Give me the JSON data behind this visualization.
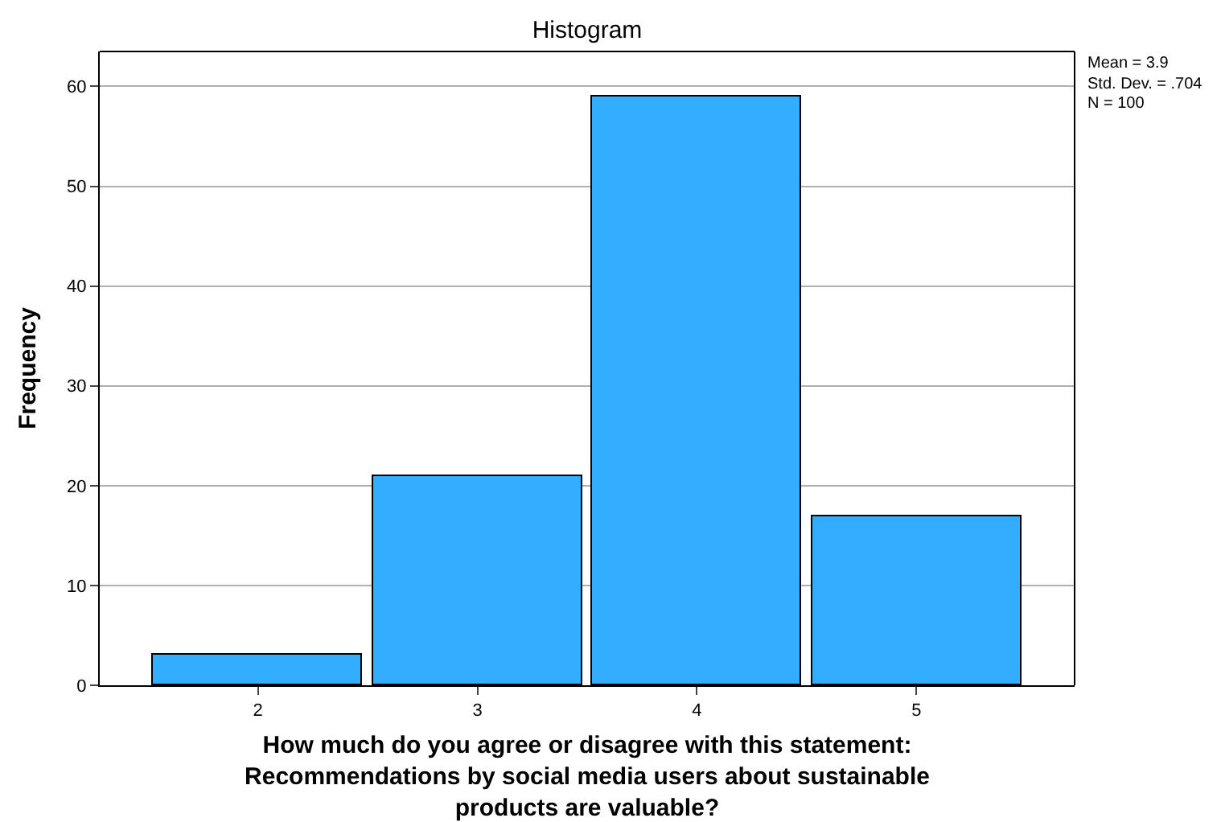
{
  "chart_data": {
    "type": "histogram",
    "title": "Histogram",
    "xlabel": "How much do you agree or disagree with this statement: Recommendations by social media users about sustainable products are valuable?",
    "ylabel": "Frequency",
    "bins": [
      1.5,
      2.5,
      3.5,
      4.5,
      5.5
    ],
    "values": [
      3,
      21,
      59,
      17
    ],
    "color": "#33adff",
    "xlim": [
      1.28,
      5.72
    ],
    "xticks": [
      2,
      3,
      4,
      5
    ],
    "ylim": [
      0,
      63.5
    ],
    "yticks": [
      0,
      10,
      20,
      30,
      40,
      50,
      60
    ],
    "grid": "y",
    "legend": false,
    "annotations": [
      "Mean = 3.9",
      "Std. Dev. = .704",
      "N = 100"
    ]
  }
}
